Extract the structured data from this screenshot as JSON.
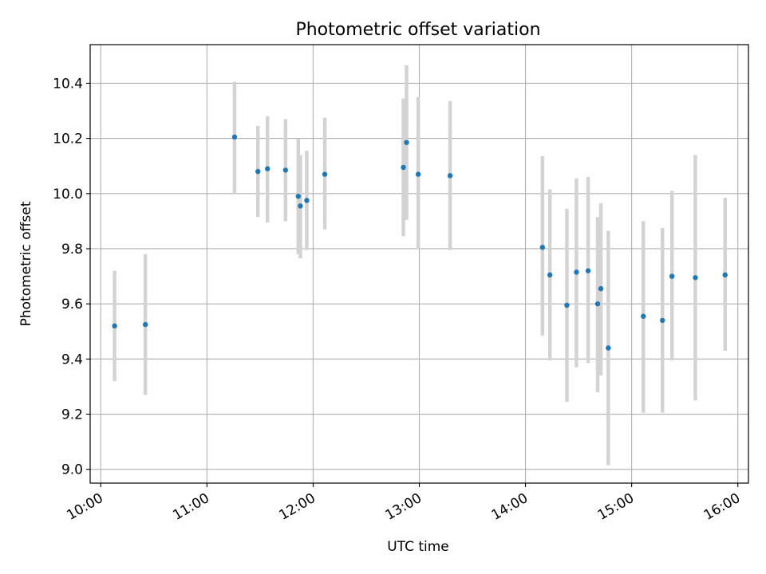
{
  "chart_data": {
    "type": "scatter",
    "title": "Photometric offset variation",
    "xlabel": "UTC time",
    "ylabel": "Photometric offset",
    "xlim": [
      9.9,
      16.1
    ],
    "ylim": [
      8.95,
      10.54
    ],
    "grid": true,
    "x_ticks": [
      {
        "value": 10,
        "label": "10:00"
      },
      {
        "value": 11,
        "label": "11:00"
      },
      {
        "value": 12,
        "label": "12:00"
      },
      {
        "value": 13,
        "label": "13:00"
      },
      {
        "value": 14,
        "label": "14:00"
      },
      {
        "value": 15,
        "label": "15:00"
      },
      {
        "value": 16,
        "label": "16:00"
      }
    ],
    "y_ticks": [
      {
        "value": 9.0,
        "label": "9.0"
      },
      {
        "value": 9.2,
        "label": "9.2"
      },
      {
        "value": 9.4,
        "label": "9.4"
      },
      {
        "value": 9.6,
        "label": "9.6"
      },
      {
        "value": 9.8,
        "label": "9.8"
      },
      {
        "value": 10.0,
        "label": "10.0"
      },
      {
        "value": 10.2,
        "label": "10.2"
      },
      {
        "value": 10.4,
        "label": "10.4"
      }
    ],
    "colors": {
      "point": "#1f77b4",
      "errorbar": "#d3d3d3",
      "grid": "#b0b0b0",
      "axis": "#000000"
    },
    "points": [
      {
        "x": 10.13,
        "y": 9.52,
        "lo": 9.32,
        "hi": 9.72
      },
      {
        "x": 10.42,
        "y": 9.525,
        "lo": 9.27,
        "hi": 9.78
      },
      {
        "x": 11.26,
        "y": 10.205,
        "lo": 10.0,
        "hi": 10.405
      },
      {
        "x": 11.48,
        "y": 10.08,
        "lo": 9.915,
        "hi": 10.245
      },
      {
        "x": 11.57,
        "y": 10.09,
        "lo": 9.895,
        "hi": 10.28
      },
      {
        "x": 11.74,
        "y": 10.085,
        "lo": 9.9,
        "hi": 10.27
      },
      {
        "x": 11.86,
        "y": 9.99,
        "lo": 9.78,
        "hi": 10.2
      },
      {
        "x": 11.88,
        "y": 9.955,
        "lo": 9.765,
        "hi": 10.14
      },
      {
        "x": 11.94,
        "y": 9.975,
        "lo": 9.795,
        "hi": 10.155
      },
      {
        "x": 12.11,
        "y": 10.07,
        "lo": 9.87,
        "hi": 10.275
      },
      {
        "x": 12.85,
        "y": 10.095,
        "lo": 9.845,
        "hi": 10.345
      },
      {
        "x": 12.88,
        "y": 10.185,
        "lo": 9.905,
        "hi": 10.465
      },
      {
        "x": 12.99,
        "y": 10.07,
        "lo": 9.8,
        "hi": 10.35
      },
      {
        "x": 13.29,
        "y": 10.065,
        "lo": 9.795,
        "hi": 10.335
      },
      {
        "x": 14.16,
        "y": 9.805,
        "lo": 9.485,
        "hi": 10.135
      },
      {
        "x": 14.23,
        "y": 9.705,
        "lo": 9.395,
        "hi": 10.015
      },
      {
        "x": 14.39,
        "y": 9.595,
        "lo": 9.245,
        "hi": 9.945
      },
      {
        "x": 14.48,
        "y": 9.715,
        "lo": 9.37,
        "hi": 10.055
      },
      {
        "x": 14.59,
        "y": 9.72,
        "lo": 9.385,
        "hi": 10.06
      },
      {
        "x": 14.68,
        "y": 9.6,
        "lo": 9.28,
        "hi": 9.915
      },
      {
        "x": 14.71,
        "y": 9.655,
        "lo": 9.34,
        "hi": 9.965
      },
      {
        "x": 14.78,
        "y": 9.44,
        "lo": 9.015,
        "hi": 9.865
      },
      {
        "x": 15.11,
        "y": 9.555,
        "lo": 9.205,
        "hi": 9.9
      },
      {
        "x": 15.29,
        "y": 9.54,
        "lo": 9.205,
        "hi": 9.875
      },
      {
        "x": 15.38,
        "y": 9.7,
        "lo": 9.395,
        "hi": 10.01
      },
      {
        "x": 15.6,
        "y": 9.695,
        "lo": 9.25,
        "hi": 10.14
      },
      {
        "x": 15.88,
        "y": 9.705,
        "lo": 9.43,
        "hi": 9.985
      }
    ]
  }
}
